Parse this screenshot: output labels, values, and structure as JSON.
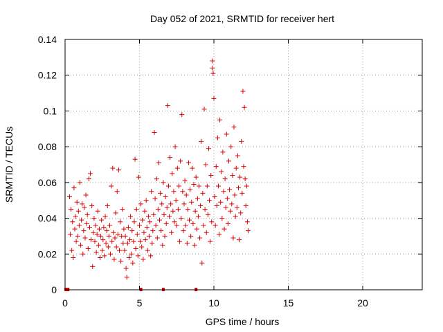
{
  "chart_data": {
    "type": "scatter",
    "title": "Day 052 of 2021, SRMTID for receiver hert",
    "xlabel": "GPS time / hours",
    "ylabel": "SRMTID / TECUs",
    "xlim": [
      0,
      24
    ],
    "ylim": [
      0,
      0.14
    ],
    "xticks": [
      0,
      5,
      10,
      15,
      20
    ],
    "yticks": [
      0,
      0.02,
      0.04,
      0.06,
      0.08,
      0.1,
      0.12,
      0.14
    ],
    "xtick_labels": [
      "0",
      "5",
      "10",
      "15",
      "20"
    ],
    "ytick_labels": [
      "0",
      "0.02",
      "0.04",
      "0.06",
      "0.08",
      "0.1",
      "0.12",
      "0.14"
    ],
    "grid": true,
    "marker": "+",
    "color": "#dd0000",
    "series": [
      {
        "points": [
          [
            0.05,
            0.0
          ],
          [
            0.2,
            0.0
          ],
          [
            5.1,
            0.0
          ],
          [
            6.6,
            0.0
          ],
          [
            8.8,
            0.0
          ],
          [
            0.3,
            0.052
          ],
          [
            0.35,
            0.031
          ],
          [
            0.4,
            0.045
          ],
          [
            0.45,
            0.022
          ],
          [
            0.5,
            0.038
          ],
          [
            0.55,
            0.018
          ],
          [
            0.6,
            0.057
          ],
          [
            0.65,
            0.034
          ],
          [
            0.7,
            0.041
          ],
          [
            0.75,
            0.027
          ],
          [
            0.8,
            0.049
          ],
          [
            0.85,
            0.03
          ],
          [
            0.9,
            0.044
          ],
          [
            0.95,
            0.036
          ],
          [
            1.0,
            0.06
          ],
          [
            1.05,
            0.025
          ],
          [
            1.1,
            0.039
          ],
          [
            1.15,
            0.048
          ],
          [
            1.2,
            0.02
          ],
          [
            1.25,
            0.033
          ],
          [
            1.3,
            0.046
          ],
          [
            1.35,
            0.029
          ],
          [
            1.4,
            0.053
          ],
          [
            1.45,
            0.037
          ],
          [
            1.5,
            0.042
          ],
          [
            1.55,
            0.023
          ],
          [
            1.6,
            0.062
          ],
          [
            1.65,
            0.035
          ],
          [
            1.7,
            0.065
          ],
          [
            1.75,
            0.028
          ],
          [
            1.8,
            0.047
          ],
          [
            1.85,
            0.013
          ],
          [
            1.9,
            0.032
          ],
          [
            1.95,
            0.04
          ],
          [
            2.0,
            0.027
          ],
          [
            2.05,
            0.036
          ],
          [
            2.1,
            0.021
          ],
          [
            2.15,
            0.031
          ],
          [
            2.2,
            0.044
          ],
          [
            2.25,
            0.025
          ],
          [
            2.3,
            0.034
          ],
          [
            2.35,
            0.018
          ],
          [
            2.4,
            0.03
          ],
          [
            2.45,
            0.039
          ],
          [
            2.5,
            0.022
          ],
          [
            2.55,
            0.028
          ],
          [
            2.6,
            0.035
          ],
          [
            2.65,
            0.019
          ],
          [
            2.7,
            0.041
          ],
          [
            2.75,
            0.026
          ],
          [
            2.8,
            0.033
          ],
          [
            2.85,
            0.047
          ],
          [
            2.9,
            0.024
          ],
          [
            2.95,
            0.03
          ],
          [
            3.0,
            0.036
          ],
          [
            3.05,
            0.02
          ],
          [
            3.1,
            0.058
          ],
          [
            3.15,
            0.027
          ],
          [
            3.2,
            0.068
          ],
          [
            3.25,
            0.032
          ],
          [
            3.3,
            0.017
          ],
          [
            3.35,
            0.029
          ],
          [
            3.4,
            0.043
          ],
          [
            3.45,
            0.024
          ],
          [
            3.5,
            0.055
          ],
          [
            3.55,
            0.031
          ],
          [
            3.6,
            0.067
          ],
          [
            3.65,
            0.022
          ],
          [
            3.7,
            0.038
          ],
          [
            3.75,
            0.016
          ],
          [
            3.8,
            0.03
          ],
          [
            3.85,
            0.045
          ],
          [
            3.9,
            0.026
          ],
          [
            3.95,
            0.034
          ],
          [
            4.0,
            0.022
          ],
          [
            4.05,
            0.03
          ],
          [
            4.1,
            0.012
          ],
          [
            4.15,
            0.007
          ],
          [
            4.2,
            0.026
          ],
          [
            4.25,
            0.035
          ],
          [
            4.3,
            0.018
          ],
          [
            4.35,
            0.028
          ],
          [
            4.4,
            0.041
          ],
          [
            4.45,
            0.02
          ],
          [
            4.5,
            0.033
          ],
          [
            4.55,
            0.015
          ],
          [
            4.6,
            0.027
          ],
          [
            4.65,
            0.038
          ],
          [
            4.7,
            0.073
          ],
          [
            4.75,
            0.023
          ],
          [
            4.8,
            0.045
          ],
          [
            4.85,
            0.031
          ],
          [
            4.9,
            0.019
          ],
          [
            4.95,
            0.063
          ],
          [
            5.0,
            0.036
          ],
          [
            5.05,
            0.027
          ],
          [
            5.1,
            0.048
          ],
          [
            5.15,
            0.024
          ],
          [
            5.2,
            0.039
          ],
          [
            5.25,
            0.017
          ],
          [
            5.3,
            0.032
          ],
          [
            5.35,
            0.044
          ],
          [
            5.4,
            0.028
          ],
          [
            5.45,
            0.05
          ],
          [
            5.5,
            0.035
          ],
          [
            5.55,
            0.022
          ],
          [
            5.6,
            0.041
          ],
          [
            5.65,
            0.03
          ],
          [
            5.7,
            0.038
          ],
          [
            5.75,
            0.019
          ],
          [
            5.8,
            0.055
          ],
          [
            5.85,
            0.026
          ],
          [
            5.9,
            0.033
          ],
          [
            5.95,
            0.042
          ],
          [
            6.0,
            0.088
          ],
          [
            6.05,
            0.051
          ],
          [
            6.1,
            0.036
          ],
          [
            6.15,
            0.062
          ],
          [
            6.2,
            0.029
          ],
          [
            6.25,
            0.045
          ],
          [
            6.3,
            0.071
          ],
          [
            6.35,
            0.039
          ],
          [
            6.4,
            0.054
          ],
          [
            6.45,
            0.033
          ],
          [
            6.5,
            0.048
          ],
          [
            6.55,
            0.025
          ],
          [
            6.6,
            0.06
          ],
          [
            6.65,
            0.042
          ],
          [
            6.7,
            0.03
          ],
          [
            6.75,
            0.052
          ],
          [
            6.8,
            0.037
          ],
          [
            6.85,
            0.046
          ],
          [
            6.9,
            0.103
          ],
          [
            6.95,
            0.058
          ],
          [
            7.0,
            0.041
          ],
          [
            7.05,
            0.074
          ],
          [
            7.1,
            0.048
          ],
          [
            7.15,
            0.032
          ],
          [
            7.2,
            0.065
          ],
          [
            7.25,
            0.044
          ],
          [
            7.3,
            0.055
          ],
          [
            7.35,
            0.038
          ],
          [
            7.4,
            0.08
          ],
          [
            7.45,
            0.05
          ],
          [
            7.5,
            0.036
          ],
          [
            7.55,
            0.068
          ],
          [
            7.6,
            0.045
          ],
          [
            7.65,
            0.058
          ],
          [
            7.7,
            0.027
          ],
          [
            7.75,
            0.072
          ],
          [
            7.8,
            0.04
          ],
          [
            7.85,
            0.098
          ],
          [
            7.9,
            0.055
          ],
          [
            7.95,
            0.033
          ],
          [
            8.0,
            0.048
          ],
          [
            8.05,
            0.061
          ],
          [
            8.1,
            0.036
          ],
          [
            8.15,
            0.053
          ],
          [
            8.2,
            0.026
          ],
          [
            8.25,
            0.045
          ],
          [
            8.3,
            0.071
          ],
          [
            8.35,
            0.039
          ],
          [
            8.4,
            0.056
          ],
          [
            8.45,
            0.03
          ],
          [
            8.5,
            0.049
          ],
          [
            8.55,
            0.068
          ],
          [
            8.6,
            0.037
          ],
          [
            8.65,
            0.059
          ],
          [
            8.7,
            0.025
          ],
          [
            8.75,
            0.044
          ],
          [
            8.8,
            0.063
          ],
          [
            8.85,
            0.034
          ],
          [
            8.9,
            0.051
          ],
          [
            8.95,
            0.041
          ],
          [
            9.0,
            0.058
          ],
          [
            9.05,
            0.029
          ],
          [
            9.1,
            0.047
          ],
          [
            9.15,
            0.083
          ],
          [
            9.2,
            0.015
          ],
          [
            9.25,
            0.054
          ],
          [
            9.3,
            0.036
          ],
          [
            9.35,
            0.101
          ],
          [
            9.4,
            0.045
          ],
          [
            9.45,
            0.07
          ],
          [
            9.5,
            0.032
          ],
          [
            9.55,
            0.058
          ],
          [
            9.6,
            0.042
          ],
          [
            9.65,
            0.079
          ],
          [
            9.7,
            0.05
          ],
          [
            9.75,
            0.027
          ],
          [
            9.8,
            0.064
          ],
          [
            9.85,
            0.038
          ],
          [
            9.9,
            0.128
          ],
          [
            9.95,
            0.121
          ],
          [
            9.9,
            0.124
          ],
          [
            10.0,
            0.107
          ],
          [
            10.05,
            0.052
          ],
          [
            10.1,
            0.036
          ],
          [
            10.15,
            0.069
          ],
          [
            10.2,
            0.047
          ],
          [
            10.25,
            0.085
          ],
          [
            10.3,
            0.058
          ],
          [
            10.35,
            0.031
          ],
          [
            10.4,
            0.095
          ],
          [
            10.45,
            0.049
          ],
          [
            10.5,
            0.066
          ],
          [
            10.55,
            0.04
          ],
          [
            10.6,
            0.077
          ],
          [
            10.65,
            0.055
          ],
          [
            10.7,
            0.034
          ],
          [
            10.75,
            0.062
          ],
          [
            10.8,
            0.046
          ],
          [
            10.85,
            0.087
          ],
          [
            10.9,
            0.051
          ],
          [
            10.95,
            0.037
          ],
          [
            11.0,
            0.072
          ],
          [
            11.05,
            0.056
          ],
          [
            11.1,
            0.044
          ],
          [
            11.15,
            0.08
          ],
          [
            11.2,
            0.048
          ],
          [
            11.25,
            0.064
          ],
          [
            11.3,
            0.029
          ],
          [
            11.35,
            0.091
          ],
          [
            11.4,
            0.053
          ],
          [
            11.45,
            0.041
          ],
          [
            11.5,
            0.068
          ],
          [
            11.55,
            0.046
          ],
          [
            11.6,
            0.075
          ],
          [
            11.65,
            0.057
          ],
          [
            11.7,
            0.028
          ],
          [
            11.75,
            0.063
          ],
          [
            11.8,
            0.043
          ],
          [
            11.85,
            0.083
          ],
          [
            11.9,
            0.054
          ],
          [
            11.95,
            0.111
          ],
          [
            12.0,
            0.069
          ],
          [
            12.05,
            0.102
          ],
          [
            12.1,
            0.062
          ],
          [
            12.15,
            0.047
          ],
          [
            12.2,
            0.058
          ],
          [
            12.25,
            0.038
          ],
          [
            12.3,
            0.033
          ]
        ]
      }
    ]
  }
}
